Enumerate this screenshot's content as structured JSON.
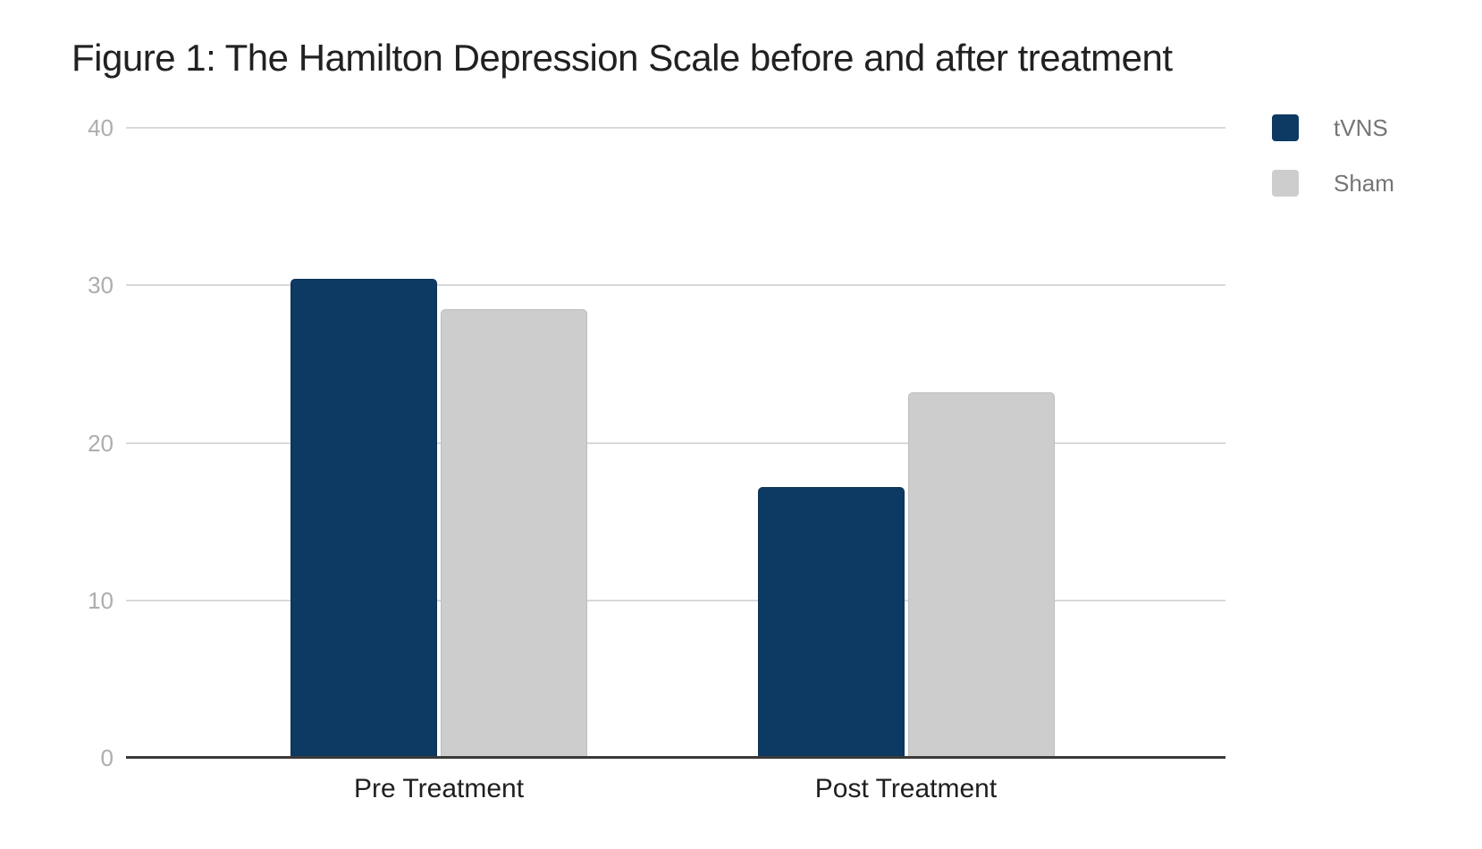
{
  "chart_data": {
    "type": "bar",
    "title": "Figure 1: The Hamilton Depression Scale before and after treatment",
    "categories": [
      "Pre Treatment",
      "Post Treatment"
    ],
    "series": [
      {
        "name": "tVNS",
        "color": "#0d3a62",
        "border_color": "#0b3154",
        "values": [
          30.4,
          17.2
        ]
      },
      {
        "name": "Sham",
        "color": "#cdcdcd",
        "border_color": "#bdbdbd",
        "values": [
          28.5,
          23.2
        ]
      }
    ],
    "xlabel": "",
    "ylabel": "",
    "ylim": [
      0,
      40
    ],
    "yticks": [
      0,
      10,
      20,
      30,
      40
    ],
    "grid": true,
    "legend_position": "top-right",
    "colors": {
      "background": "#ffffff",
      "gridline": "#d9d9d9",
      "axis_line": "#3a3a3a",
      "tick_label": "#adadad",
      "category_label": "#1f1f1f",
      "legend_label": "#757575",
      "title": "#212121"
    }
  }
}
